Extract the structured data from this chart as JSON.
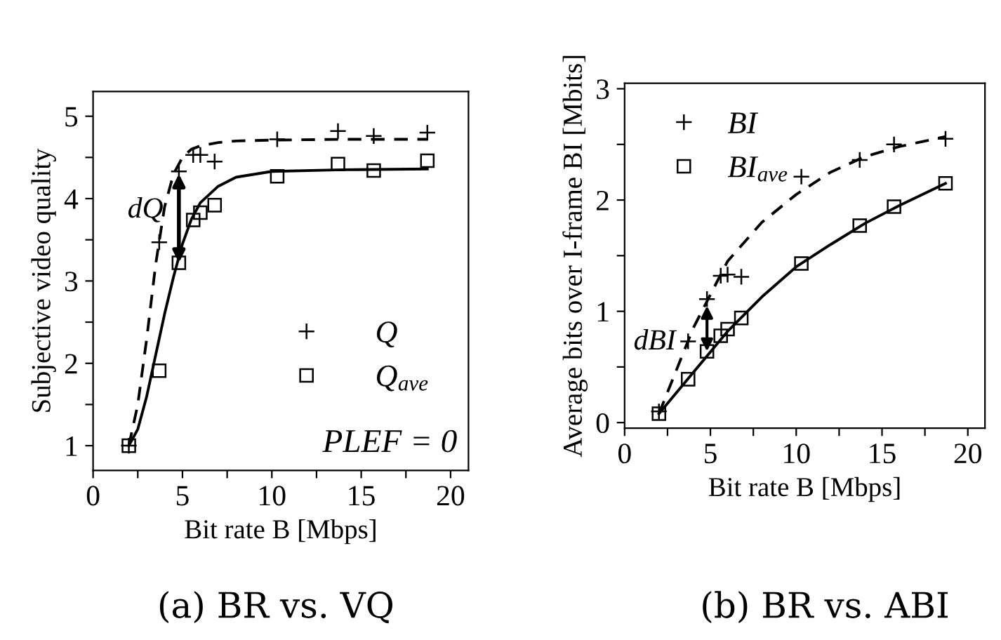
{
  "chart_data": [
    {
      "type": "scatter",
      "xlabel": "Bit rate B [Mbps]",
      "ylabel": "Subjective video quality",
      "xlim": [
        0,
        21
      ],
      "ylim": [
        0.7,
        5.3
      ],
      "xticks": [
        0,
        {
          "value": 2.5,
          "label": null
        },
        5,
        {
          "value": 7.5,
          "label": null
        },
        10,
        {
          "value": 12.5,
          "label": null
        },
        15,
        {
          "value": 17.5,
          "label": null
        },
        20
      ],
      "yticks": [
        1,
        {
          "value": 1.5,
          "label": null
        },
        2,
        {
          "value": 2.5,
          "label": null
        },
        3,
        {
          "value": 3.5,
          "label": null
        },
        4,
        {
          "value": 4.5,
          "label": null
        },
        5
      ],
      "grid": false,
      "legend": "right",
      "series": [
        {
          "name": "Q",
          "marker": "cross",
          "color": "#000000",
          "x": [
            2,
            3.7,
            4.8,
            5.6,
            6,
            6.8,
            10.3,
            13.7,
            15.7,
            18.7
          ],
          "values": [
            1.0,
            3.47,
            4.33,
            4.53,
            4.53,
            4.45,
            4.72,
            4.82,
            4.76,
            4.8
          ]
        },
        {
          "name": "Q$_{ave}$",
          "marker": "square",
          "color": "#000000",
          "x": [
            2,
            3.7,
            4.8,
            5.6,
            6,
            6.8,
            10.3,
            13.7,
            15.7,
            18.7
          ],
          "values": [
            1.0,
            1.91,
            3.22,
            3.74,
            3.83,
            3.92,
            4.27,
            4.42,
            4.34,
            4.46
          ]
        },
        {
          "type": "line",
          "line_style": "dashed",
          "color": "#000000",
          "x": [
            2,
            2.5,
            3,
            3.5,
            4,
            4.5,
            5,
            5.5,
            6,
            7,
            8,
            10,
            14,
            18.7
          ],
          "values": [
            1.0,
            1.5,
            2.3,
            3.2,
            3.9,
            4.3,
            4.5,
            4.6,
            4.64,
            4.68,
            4.7,
            4.71,
            4.72,
            4.72
          ]
        },
        {
          "type": "line",
          "line_style": "solid",
          "color": "#000000",
          "x": [
            2,
            2.5,
            3,
            3.5,
            4,
            4.5,
            5,
            5.5,
            6,
            7,
            8,
            10,
            14,
            18.7
          ],
          "values": [
            1.0,
            1.2,
            1.6,
            2.1,
            2.6,
            3.05,
            3.45,
            3.75,
            3.95,
            4.15,
            4.26,
            4.33,
            4.35,
            4.36
          ]
        }
      ],
      "annotations": [
        {
          "text": "dQ",
          "x": 4.8,
          "y": 4.3
        },
        "PLEF = 0",
        "(a) BR vs. VQ"
      ]
    },
    {
      "type": "scatter",
      "xlabel": "Bit rate B [Mbps]",
      "ylabel": "Average bits over I-frame BI [Mbits]",
      "xlim": [
        0,
        21
      ],
      "ylim": [
        -0.05,
        3.05
      ],
      "xticks": [
        0,
        {
          "value": 2.5,
          "label": null
        },
        5,
        {
          "value": 7.5,
          "label": null
        },
        10,
        {
          "value": 12.5,
          "label": null
        },
        15,
        {
          "value": 17.5,
          "label": null
        },
        20
      ],
      "yticks": [
        0,
        {
          "value": 0.5,
          "label": null
        },
        1,
        {
          "value": 1.5,
          "label": null
        },
        2,
        {
          "value": 2.5,
          "label": null
        },
        3
      ],
      "grid": false,
      "legend": "top left",
      "series": [
        {
          "name": "BI",
          "marker": "cross",
          "color": "#000000",
          "x": [
            2,
            3.7,
            4.8,
            5.6,
            6,
            6.8,
            10.3,
            13.7,
            15.7,
            18.7
          ],
          "values": [
            0.1,
            0.73,
            1.11,
            1.32,
            1.33,
            1.31,
            2.21,
            2.36,
            2.5,
            2.55
          ]
        },
        {
          "name": "BI$_{ave}$",
          "marker": "square",
          "color": "#000000",
          "x": [
            2,
            3.7,
            4.8,
            5.6,
            6,
            6.8,
            10.3,
            13.7,
            15.7,
            18.7
          ],
          "values": [
            0.08,
            0.39,
            0.64,
            0.78,
            0.84,
            0.94,
            1.43,
            1.77,
            1.94,
            2.15
          ]
        },
        {
          "type": "line",
          "line_style": "dashed",
          "color": "#000000",
          "x": [
            2,
            4,
            6,
            8,
            10,
            12,
            14,
            16,
            18.7
          ],
          "values": [
            0.08,
            0.85,
            1.45,
            1.8,
            2.05,
            2.25,
            2.39,
            2.48,
            2.57
          ]
        },
        {
          "type": "line",
          "line_style": "solid",
          "color": "#000000",
          "x": [
            2,
            4,
            6,
            8,
            10,
            12,
            14,
            16,
            18.7
          ],
          "values": [
            0.08,
            0.45,
            0.82,
            1.13,
            1.4,
            1.6,
            1.79,
            1.95,
            2.15
          ]
        }
      ],
      "annotations": [
        {
          "text": "dBI",
          "x": 4.8,
          "y": 1.05
        },
        "(b) BR vs. ABI"
      ]
    }
  ]
}
